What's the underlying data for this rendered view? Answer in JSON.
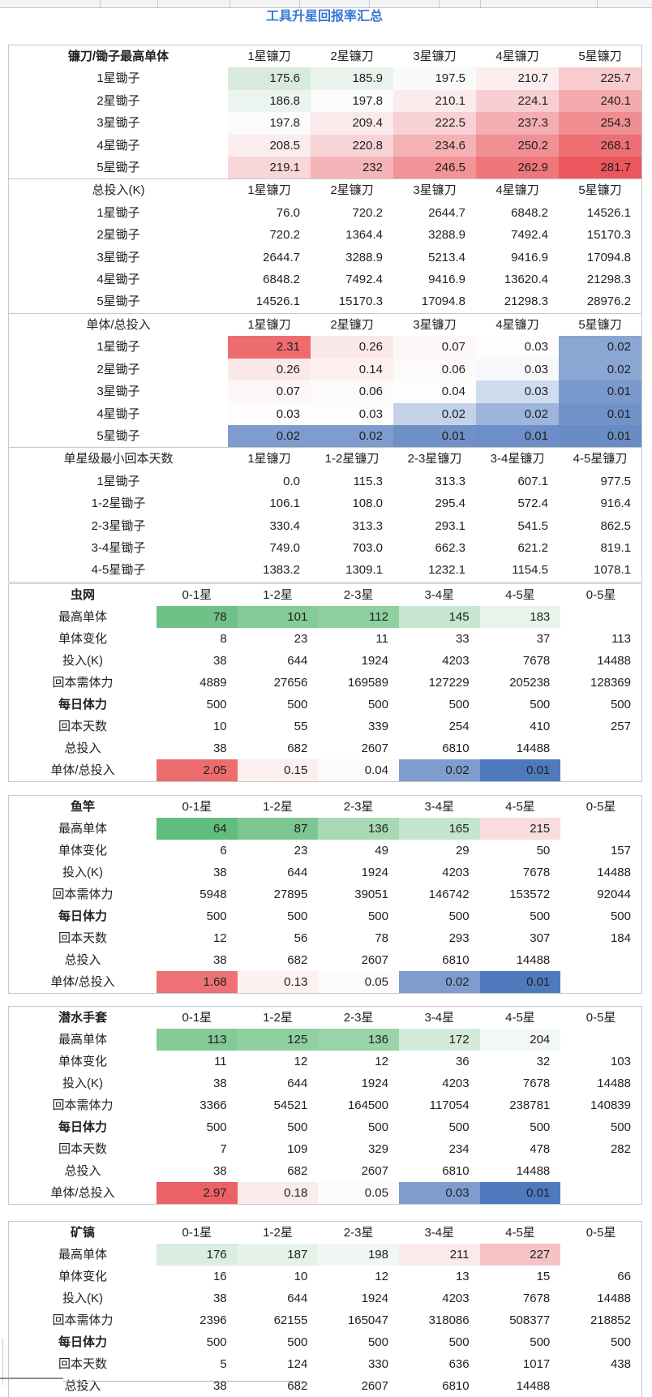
{
  "title": "工具升星回报率汇总",
  "colors": {
    "title_blue": "#3478d6",
    "strong_red": "#ed6d6f",
    "strong_green": "#63be80",
    "strong_blue": "#4e79bc"
  },
  "sectionA": {
    "tables": [
      {
        "name": "镰刀/锄子最高单体",
        "bold": true,
        "columns": [
          "1星镰刀",
          "2星镰刀",
          "3星镰刀",
          "4星镰刀",
          "5星镰刀"
        ],
        "rows": [
          {
            "label": "1星锄子",
            "values": [
              "175.6",
              "185.9",
              "197.5",
              "210.7",
              "225.7"
            ],
            "bg": [
              "#D7EADC",
              "#E9F3EC",
              "#F9FBFA",
              "#FCEEEF",
              "#F8CBCE"
            ]
          },
          {
            "label": "2星锄子",
            "values": [
              "186.8",
              "197.8",
              "210.1",
              "224.1",
              "240.1"
            ],
            "bg": [
              "#EBF4EE",
              "#FAFBFA",
              "#FBEBEC",
              "#F7CED1",
              "#F5AAAE"
            ]
          },
          {
            "label": "3星锄子",
            "values": [
              "197.8",
              "209.4",
              "222.5",
              "237.3",
              "254.3"
            ],
            "bg": [
              "#FAFBFA",
              "#FBEAEB",
              "#F7D1D3",
              "#F4ADB1",
              "#F08D91"
            ]
          },
          {
            "label": "4星锄子",
            "values": [
              "208.5",
              "220.8",
              "234.6",
              "250.2",
              "268.1"
            ],
            "bg": [
              "#FBECED",
              "#F7D4D6",
              "#F4B2B5",
              "#F09094",
              "#EE6F74"
            ]
          },
          {
            "label": "5星锄子",
            "values": [
              "219.1",
              "232",
              "246.5",
              "262.9",
              "281.7"
            ],
            "bg": [
              "#F8D7D9",
              "#F5B5B8",
              "#F29397",
              "#EF767B",
              "#EB575C"
            ]
          }
        ]
      },
      {
        "name": "总投入(K)",
        "bold": false,
        "columns": [
          "1星镰刀",
          "2星镰刀",
          "3星镰刀",
          "4星镰刀",
          "5星镰刀"
        ],
        "rows": [
          {
            "label": "1星锄子",
            "values": [
              "76.0",
              "720.2",
              "2644.7",
              "6848.2",
              "14526.1"
            ]
          },
          {
            "label": "2星锄子",
            "values": [
              "720.2",
              "1364.4",
              "3288.9",
              "7492.4",
              "15170.3"
            ]
          },
          {
            "label": "3星锄子",
            "values": [
              "2644.7",
              "3288.9",
              "5213.4",
              "9416.9",
              "17094.8"
            ]
          },
          {
            "label": "4星锄子",
            "values": [
              "6848.2",
              "7492.4",
              "9416.9",
              "13620.4",
              "21298.3"
            ]
          },
          {
            "label": "5星锄子",
            "values": [
              "14526.1",
              "15170.3",
              "17094.8",
              "21298.3",
              "28976.2"
            ]
          }
        ]
      },
      {
        "name": "单体/总投入",
        "bold": false,
        "columns": [
          "1星镰刀",
          "2星镰刀",
          "3星镰刀",
          "4星镰刀",
          "5星镰刀"
        ],
        "rows": [
          {
            "label": "1星锄子",
            "values": [
              "2.31",
              "0.26",
              "0.07",
              "0.03",
              "0.02"
            ],
            "bg": [
              "#ED6D6F",
              "#FBE8E9",
              "#FDF7F7",
              "#FEFCFC",
              "#8AA6D2"
            ]
          },
          {
            "label": "2星锄子",
            "values": [
              "0.26",
              "0.14",
              "0.06",
              "0.03",
              "0.02"
            ],
            "bg": [
              "#FBE8E9",
              "#FCF0F0",
              "#FDFAFA",
              "#F6F8FC",
              "#8AA6D2"
            ]
          },
          {
            "label": "3星锄子",
            "values": [
              "0.07",
              "0.06",
              "0.04",
              "0.03",
              "0.01"
            ],
            "bg": [
              "#FDF7F7",
              "#FDFAFA",
              "#FDFDFD",
              "#CFDCEE",
              "#7A99CC"
            ]
          },
          {
            "label": "4星锄子",
            "values": [
              "0.03",
              "0.03",
              "0.02",
              "0.02",
              "0.01"
            ],
            "bg": [
              "#FEFCFC",
              "#FEFDFD",
              "#C3D2E9",
              "#9DB4DC",
              "#7293C9"
            ]
          },
          {
            "label": "5星锄子",
            "values": [
              "0.02",
              "0.02",
              "0.01",
              "0.01",
              "0.01"
            ],
            "bg": [
              "#7E9CCE",
              "#7E9CCE",
              "#7091C7",
              "#6D8EC6",
              "#6A8CC4"
            ]
          }
        ]
      },
      {
        "name": "单星级最小回本天数",
        "bold": false,
        "columns": [
          "1星镰刀",
          "1-2星镰刀",
          "2-3星镰刀",
          "3-4星镰刀",
          "4-5星镰刀"
        ],
        "rows": [
          {
            "label": "1星锄子",
            "values": [
              "0.0",
              "115.3",
              "313.3",
              "607.1",
              "977.5"
            ]
          },
          {
            "label": "1-2星锄子",
            "values": [
              "106.1",
              "108.0",
              "295.4",
              "572.4",
              "916.4"
            ]
          },
          {
            "label": "2-3星锄子",
            "values": [
              "330.4",
              "313.3",
              "293.1",
              "541.5",
              "862.5"
            ]
          },
          {
            "label": "3-4星锄子",
            "values": [
              "749.0",
              "703.0",
              "662.3",
              "621.2",
              "819.1"
            ]
          },
          {
            "label": "4-5星锄子",
            "values": [
              "1383.2",
              "1309.1",
              "1232.1",
              "1154.5",
              "1078.1"
            ]
          }
        ]
      }
    ]
  },
  "tools": [
    {
      "name": "虫网",
      "bold": true,
      "columns": [
        "0-1星",
        "1-2星",
        "2-3星",
        "3-4星",
        "4-5星",
        "0-5星"
      ],
      "rows": [
        {
          "label": "最高单体",
          "values": [
            "78",
            "101",
            "112",
            "145",
            "183",
            ""
          ],
          "bg": [
            "#6FC188",
            "#85CB98",
            "#8FD0A0",
            "#C7E6D0",
            "#E9F4EC",
            ""
          ]
        },
        {
          "label": "单体变化",
          "values": [
            "8",
            "23",
            "11",
            "33",
            "37",
            "113"
          ]
        },
        {
          "label": "投入(K)",
          "values": [
            "38",
            "644",
            "1924",
            "4203",
            "7678",
            "14488"
          ]
        },
        {
          "label": "回本需体力",
          "values": [
            "4889",
            "27656",
            "169589",
            "127229",
            "205238",
            "128369"
          ]
        },
        {
          "label": "每日体力",
          "bold": true,
          "values": [
            "500",
            "500",
            "500",
            "500",
            "500",
            "500"
          ]
        },
        {
          "label": "回本天数",
          "values": [
            "10",
            "55",
            "339",
            "254",
            "410",
            "257"
          ]
        },
        {
          "label": "总投入",
          "values": [
            "38",
            "682",
            "2607",
            "6810",
            "14488",
            ""
          ]
        },
        {
          "label": "单体/总投入",
          "values": [
            "2.05",
            "0.15",
            "0.04",
            "0.02",
            "0.01",
            ""
          ],
          "bg": [
            "#ED6D6F",
            "#FBEFEF",
            "#FDFBFB",
            "#7E9CCE",
            "#4E79BC",
            ""
          ]
        }
      ]
    },
    {
      "name": "鱼竿",
      "bold": true,
      "columns": [
        "0-1星",
        "1-2星",
        "2-3星",
        "3-4星",
        "4-5星",
        "0-5星"
      ],
      "rows": [
        {
          "label": "最高单体",
          "values": [
            "64",
            "87",
            "136",
            "165",
            "215",
            ""
          ],
          "bg": [
            "#60BD7D",
            "#7BC691",
            "#A7D9B4",
            "#C3E4CD",
            "#F8DCDE",
            ""
          ]
        },
        {
          "label": "单体变化",
          "values": [
            "6",
            "23",
            "49",
            "29",
            "50",
            "157"
          ]
        },
        {
          "label": "投入(K)",
          "values": [
            "38",
            "644",
            "1924",
            "4203",
            "7678",
            "14488"
          ]
        },
        {
          "label": "回本需体力",
          "values": [
            "5948",
            "27895",
            "39051",
            "146742",
            "153572",
            "92044"
          ]
        },
        {
          "label": "每日体力",
          "bold": true,
          "values": [
            "500",
            "500",
            "500",
            "500",
            "500",
            "500"
          ]
        },
        {
          "label": "回本天数",
          "values": [
            "12",
            "56",
            "78",
            "293",
            "307",
            "184"
          ]
        },
        {
          "label": "总投入",
          "values": [
            "38",
            "682",
            "2607",
            "6810",
            "14488",
            ""
          ]
        },
        {
          "label": "单体/总投入",
          "values": [
            "1.68",
            "0.13",
            "0.05",
            "0.02",
            "0.01",
            ""
          ],
          "bg": [
            "#EE7275",
            "#FCF2F2",
            "#FDFBFB",
            "#7E9CCE",
            "#4E79BC",
            ""
          ]
        }
      ]
    },
    {
      "name": "潜水手套",
      "bold": true,
      "columns": [
        "0-1星",
        "1-2星",
        "2-3星",
        "3-4星",
        "4-5星",
        "0-5星"
      ],
      "rows": [
        {
          "label": "最高单体",
          "values": [
            "113",
            "125",
            "136",
            "172",
            "204",
            ""
          ],
          "bg": [
            "#84CA97",
            "#8FCFA0",
            "#99D3A9",
            "#D4EBDA",
            "#F3F8F4",
            ""
          ]
        },
        {
          "label": "单体变化",
          "values": [
            "11",
            "12",
            "12",
            "36",
            "32",
            "103"
          ]
        },
        {
          "label": "投入(K)",
          "values": [
            "38",
            "644",
            "1924",
            "4203",
            "7678",
            "14488"
          ]
        },
        {
          "label": "回本需体力",
          "values": [
            "3366",
            "54521",
            "164500",
            "117054",
            "238781",
            "140839"
          ]
        },
        {
          "label": "每日体力",
          "bold": true,
          "values": [
            "500",
            "500",
            "500",
            "500",
            "500",
            "500"
          ]
        },
        {
          "label": "回本天数",
          "values": [
            "7",
            "109",
            "329",
            "234",
            "478",
            "282"
          ]
        },
        {
          "label": "总投入",
          "values": [
            "38",
            "682",
            "2607",
            "6810",
            "14488",
            ""
          ]
        },
        {
          "label": "单体/总投入",
          "values": [
            "2.97",
            "0.18",
            "0.05",
            "0.03",
            "0.01",
            ""
          ],
          "bg": [
            "#EC6165",
            "#FBECEC",
            "#FDFBFB",
            "#7E9CCE",
            "#4E79BC",
            ""
          ]
        }
      ]
    },
    {
      "name": "矿镐",
      "bold": true,
      "columns": [
        "0-1星",
        "1-2星",
        "2-3星",
        "3-4星",
        "4-5星",
        "0-5星"
      ],
      "rows": [
        {
          "label": "最高单体",
          "values": [
            "176",
            "187",
            "198",
            "211",
            "227",
            ""
          ],
          "bg": [
            "#DAEDE0",
            "#E6F2E9",
            "#F1F7F2",
            "#FBE9EB",
            "#F6C2C5",
            ""
          ]
        },
        {
          "label": "单体变化",
          "values": [
            "16",
            "10",
            "12",
            "13",
            "15",
            "66"
          ]
        },
        {
          "label": "投入(K)",
          "values": [
            "38",
            "644",
            "1924",
            "4203",
            "7678",
            "14488"
          ]
        },
        {
          "label": "回本需体力",
          "values": [
            "2396",
            "62155",
            "165047",
            "318086",
            "508377",
            "218852"
          ]
        },
        {
          "label": "每日体力",
          "bold": true,
          "values": [
            "500",
            "500",
            "500",
            "500",
            "500",
            "500"
          ]
        },
        {
          "label": "回本天数",
          "values": [
            "5",
            "124",
            "330",
            "636",
            "1017",
            "438"
          ]
        },
        {
          "label": "总投入",
          "values": [
            "38",
            "682",
            "2607",
            "6810",
            "14488",
            ""
          ]
        }
      ]
    }
  ]
}
